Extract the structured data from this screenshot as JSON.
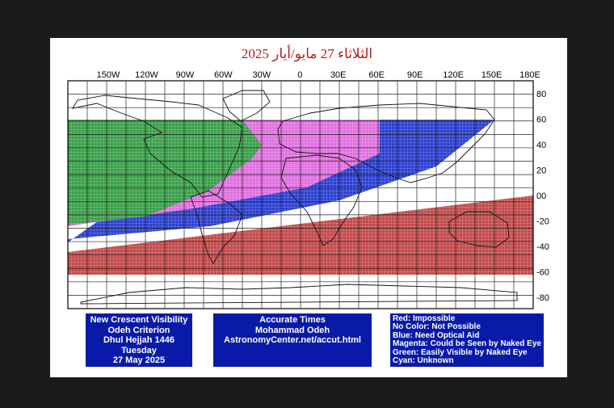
{
  "title": "الثلاثاء 27 مايو/أيار 2025",
  "lon_labels": [
    "150W",
    "120W",
    "90W",
    "60W",
    "30W",
    "0",
    "30E",
    "60E",
    "90E",
    "120E",
    "150E",
    "180E"
  ],
  "lat_labels": [
    "80",
    "60",
    "40",
    "20",
    "00",
    "-20",
    "-40",
    "-60",
    "-80"
  ],
  "info_left": [
    "New Crescent Visibility",
    "Odeh Criterion",
    "Dhul Hejjah 1446",
    "Tuesday",
    "27 May 2025"
  ],
  "info_middle": [
    "Accurate Times",
    "Mohammad Odeh",
    "AstronomyCenter.net/accut.html"
  ],
  "legend": [
    {
      "text": "Red: Impossible",
      "color": "#c44a4a"
    },
    {
      "text": "No Color: Not Possible",
      "color": "#ffffff"
    },
    {
      "text": "Blue: Need Optical Aid",
      "color": "#2b3fd0"
    },
    {
      "text": "Magenta: Could be Seen by Naked Eye",
      "color": "#e070e0"
    },
    {
      "text": "Green: Easily Visible by Naked Eye",
      "color": "#3aa04a"
    },
    {
      "text": "Cyan: Unknown",
      "color": "#00c8c8"
    }
  ],
  "colors": {
    "background": "#1b1b1b",
    "frame": "#ffffff",
    "title": "#b0201e",
    "info_box": "#0a1aa8"
  }
}
